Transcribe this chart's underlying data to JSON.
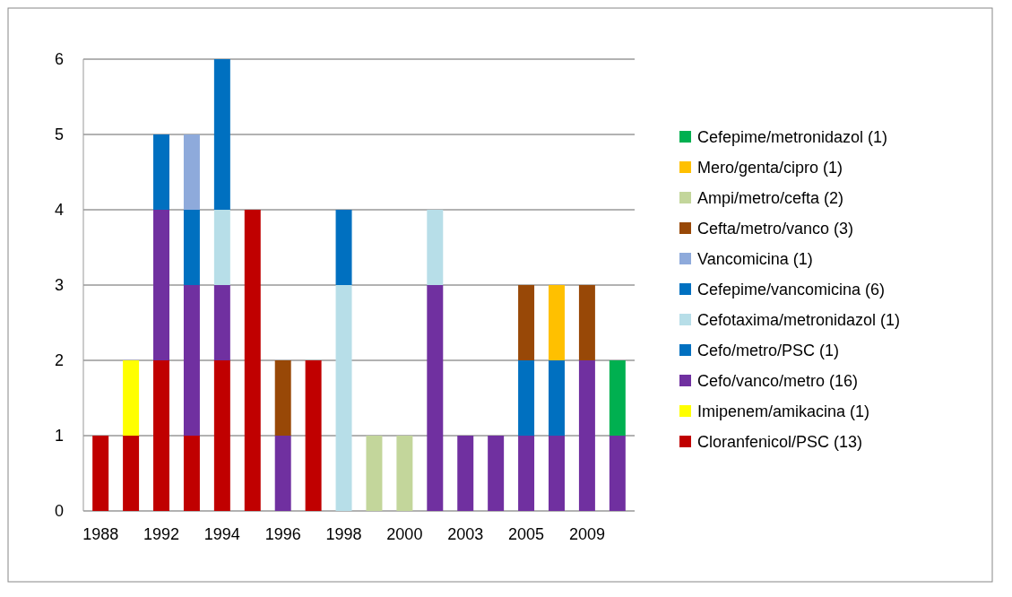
{
  "chart_data": {
    "type": "bar",
    "stacked": true,
    "grid": "y",
    "legend": "right",
    "categories": [
      "1988",
      null,
      "1992",
      null,
      "1994",
      null,
      "1996",
      null,
      "1998",
      null,
      "2000",
      null,
      "2003",
      null,
      "2005",
      null,
      "2009",
      null
    ],
    "ylim": [
      0,
      6
    ],
    "yticks": [
      0,
      1,
      2,
      3,
      4,
      5,
      6
    ],
    "series": [
      {
        "name": "Cloranfenicol/PSC (13)",
        "color": "#c00000",
        "values": [
          1,
          1,
          2,
          1,
          2,
          4,
          0,
          2,
          0,
          0,
          0,
          0,
          0,
          0,
          0,
          0,
          0,
          0
        ]
      },
      {
        "name": "Imipenem/amikacina (1)",
        "color": "#ffff00",
        "values": [
          0,
          1,
          0,
          0,
          0,
          0,
          0,
          0,
          0,
          0,
          0,
          0,
          0,
          0,
          0,
          0,
          0,
          0
        ]
      },
      {
        "name": "Cefo/vanco/metro (16)",
        "color": "#7030a0",
        "values": [
          0,
          0,
          2,
          2,
          1,
          0,
          1,
          0,
          0,
          0,
          0,
          3,
          1,
          1,
          1,
          1,
          2,
          1
        ]
      },
      {
        "name": "Cefo/metro/PSC (1)",
        "color": "#0070c0",
        "values": [
          0,
          0,
          0,
          1,
          0,
          0,
          0,
          0,
          0,
          0,
          0,
          0,
          0,
          0,
          0,
          0,
          0,
          0
        ]
      },
      {
        "name": "Cefotaxima/metronidazol (1)",
        "color": "#b7dee8",
        "values": [
          0,
          0,
          0,
          0,
          1,
          0,
          0,
          0,
          3,
          0,
          0,
          1,
          0,
          0,
          0,
          0,
          0,
          0
        ]
      },
      {
        "name": "Cefepime/vancomicina (6)",
        "color": "#0070c0",
        "values": [
          0,
          0,
          1,
          0,
          2,
          0,
          0,
          0,
          1,
          0,
          0,
          0,
          0,
          0,
          1,
          1,
          0,
          0
        ]
      },
      {
        "name": "Vancomicina (1)",
        "color": "#8eaadb",
        "values": [
          0,
          0,
          0,
          1,
          0,
          0,
          0,
          0,
          0,
          0,
          0,
          0,
          0,
          0,
          0,
          0,
          0,
          0
        ]
      },
      {
        "name": "Cefta/metro/vanco (3)",
        "color": "#984807",
        "values": [
          0,
          0,
          0,
          0,
          0,
          0,
          1,
          0,
          0,
          0,
          0,
          0,
          0,
          0,
          1,
          0,
          1,
          0
        ]
      },
      {
        "name": "Ampi/metro/cefta (2)",
        "color": "#c3d69b",
        "values": [
          0,
          0,
          0,
          0,
          0,
          0,
          0,
          0,
          0,
          1,
          1,
          0,
          0,
          0,
          0,
          0,
          0,
          0
        ]
      },
      {
        "name": "Mero/genta/cipro (1)",
        "color": "#ffc000",
        "values": [
          0,
          0,
          0,
          0,
          0,
          0,
          0,
          0,
          0,
          0,
          0,
          0,
          0,
          0,
          0,
          1,
          0,
          0
        ]
      },
      {
        "name": "Cefepime/metronidazol (1)",
        "color": "#00b050",
        "values": [
          0,
          0,
          0,
          0,
          0,
          0,
          0,
          0,
          0,
          0,
          0,
          0,
          0,
          0,
          0,
          0,
          0,
          1
        ]
      }
    ]
  }
}
